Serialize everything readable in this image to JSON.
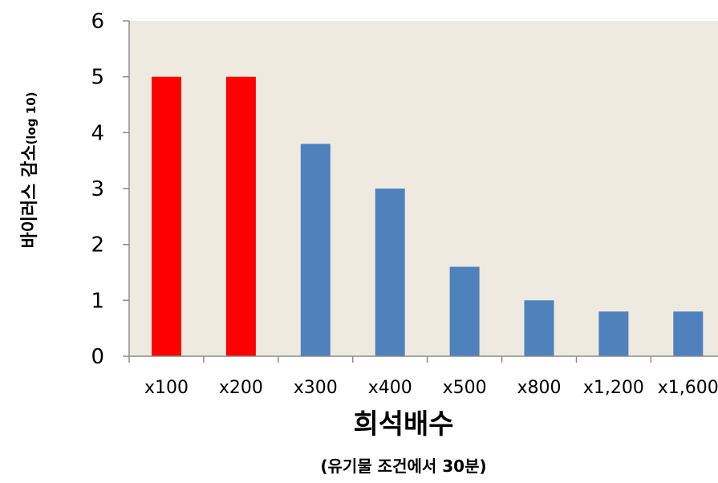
{
  "chart_data": {
    "type": "bar",
    "categories": [
      "x100",
      "x200",
      "x300",
      "x400",
      "x500",
      "x800",
      "x1,200",
      "x1,600"
    ],
    "values": [
      5,
      5,
      3.8,
      3,
      1.6,
      1,
      0.8,
      0.8
    ],
    "bar_colors": [
      "#ff0000",
      "#ff0000",
      "#4f81bd",
      "#4f81bd",
      "#4f81bd",
      "#4f81bd",
      "#4f81bd",
      "#4f81bd"
    ],
    "xlabel": "희석배수",
    "subtitle": "(유기물 조건에서 30분)",
    "ylabel_main": "바이러스 감소",
    "ylabel_unit": "(log 10)",
    "ylim": [
      0,
      6
    ],
    "yticks": [
      "0",
      "1",
      "2",
      "3",
      "4",
      "5",
      "6"
    ],
    "plot_background": "#eeeae0",
    "grid": false
  }
}
